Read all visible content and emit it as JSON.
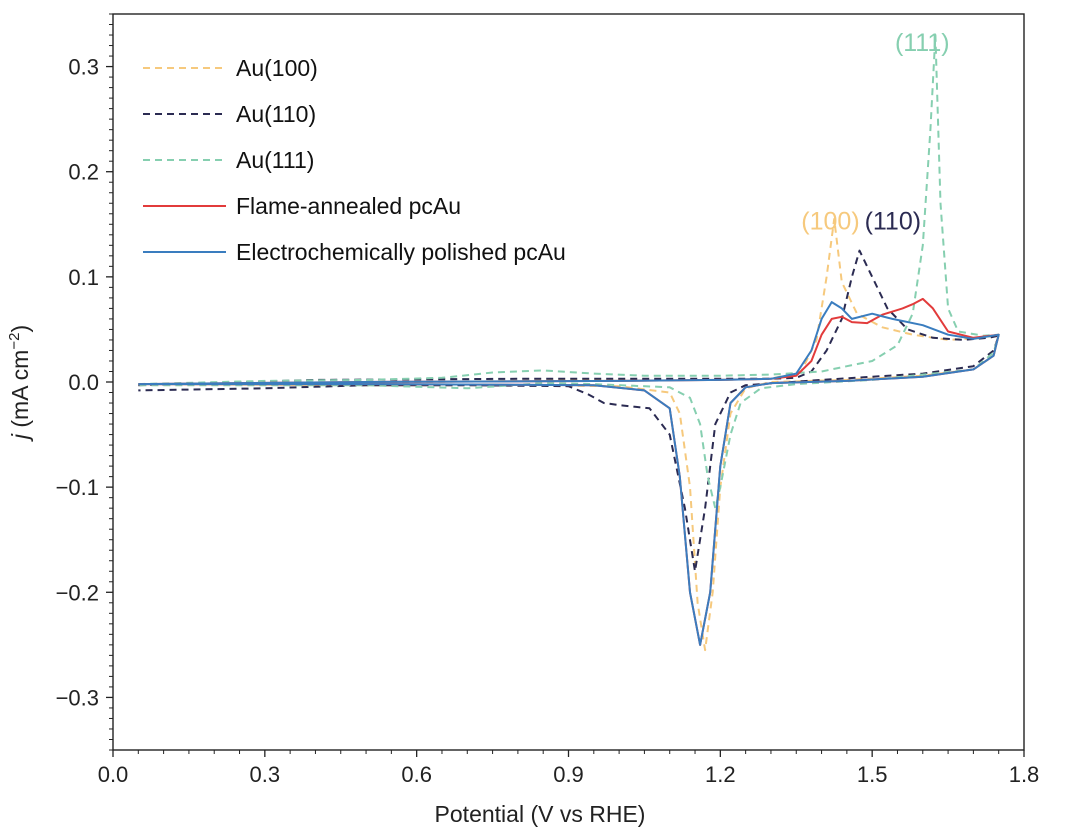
{
  "chart_data": {
    "type": "line",
    "xlabel": "Potential (V vs RHE)",
    "ylabel_italic": "j",
    "ylabel_rest": " (mA cm",
    "ylabel_sup": "−2",
    "ylabel_close": ")",
    "xlim": [
      0.0,
      1.8
    ],
    "ylim": [
      -0.35,
      0.35
    ],
    "xticks": [
      0.0,
      0.3,
      0.6,
      0.9,
      1.2,
      1.5,
      1.8
    ],
    "xtick_labels": [
      "0.0",
      "0.3",
      "0.6",
      "0.9",
      "1.2",
      "1.5",
      "1.8"
    ],
    "yticks": [
      -0.3,
      -0.2,
      -0.1,
      0.0,
      0.1,
      0.2,
      0.3
    ],
    "ytick_labels": [
      "−0.3",
      "−0.2",
      "−0.1",
      "0.0",
      "0.1",
      "0.2",
      "0.3"
    ],
    "grid": false,
    "legend_position": "top-left",
    "series": [
      {
        "name": "Au(100)",
        "color": "#f6c97d",
        "dashed": true,
        "points": [
          [
            0.05,
            -0.002
          ],
          [
            0.4,
            -0.001
          ],
          [
            0.8,
            0.001
          ],
          [
            1.0,
            0.002
          ],
          [
            1.2,
            0.002
          ],
          [
            1.3,
            0.003
          ],
          [
            1.36,
            0.01
          ],
          [
            1.39,
            0.04
          ],
          [
            1.41,
            0.1
          ],
          [
            1.425,
            0.155
          ],
          [
            1.44,
            0.095
          ],
          [
            1.47,
            0.065
          ],
          [
            1.52,
            0.052
          ],
          [
            1.58,
            0.045
          ],
          [
            1.65,
            0.04
          ],
          [
            1.72,
            0.042
          ],
          [
            1.75,
            0.045
          ],
          [
            1.74,
            0.025
          ],
          [
            1.7,
            0.012
          ],
          [
            1.6,
            0.006
          ],
          [
            1.45,
            0.002
          ],
          [
            1.3,
            0.0
          ],
          [
            1.25,
            -0.006
          ],
          [
            1.22,
            -0.03
          ],
          [
            1.2,
            -0.1
          ],
          [
            1.185,
            -0.2
          ],
          [
            1.17,
            -0.255
          ],
          [
            1.155,
            -0.21
          ],
          [
            1.14,
            -0.1
          ],
          [
            1.12,
            -0.03
          ],
          [
            1.1,
            -0.01
          ],
          [
            1.0,
            -0.004
          ],
          [
            0.8,
            -0.003
          ],
          [
            0.5,
            -0.003
          ],
          [
            0.05,
            -0.002
          ]
        ]
      },
      {
        "name": "Au(110)",
        "color": "#2b2b52",
        "dashed": true,
        "points": [
          [
            0.05,
            -0.003
          ],
          [
            0.4,
            0.002
          ],
          [
            0.8,
            0.003
          ],
          [
            1.2,
            0.003
          ],
          [
            1.3,
            0.003
          ],
          [
            1.35,
            0.004
          ],
          [
            1.38,
            0.01
          ],
          [
            1.41,
            0.03
          ],
          [
            1.44,
            0.06
          ],
          [
            1.46,
            0.1
          ],
          [
            1.475,
            0.125
          ],
          [
            1.5,
            0.1
          ],
          [
            1.53,
            0.07
          ],
          [
            1.57,
            0.05
          ],
          [
            1.62,
            0.042
          ],
          [
            1.68,
            0.04
          ],
          [
            1.73,
            0.042
          ],
          [
            1.75,
            0.044
          ],
          [
            1.74,
            0.03
          ],
          [
            1.7,
            0.015
          ],
          [
            1.6,
            0.008
          ],
          [
            1.4,
            0.002
          ],
          [
            1.25,
            -0.003
          ],
          [
            1.22,
            -0.01
          ],
          [
            1.19,
            -0.04
          ],
          [
            1.17,
            -0.12
          ],
          [
            1.15,
            -0.18
          ],
          [
            1.13,
            -0.12
          ],
          [
            1.1,
            -0.05
          ],
          [
            1.06,
            -0.025
          ],
          [
            1.0,
            -0.022
          ],
          [
            0.97,
            -0.02
          ],
          [
            0.94,
            -0.012
          ],
          [
            0.9,
            -0.004
          ],
          [
            0.7,
            -0.003
          ],
          [
            0.5,
            -0.003
          ],
          [
            0.3,
            -0.006
          ],
          [
            0.05,
            -0.008
          ]
        ]
      },
      {
        "name": "Au(111)",
        "color": "#86cfb0",
        "dashed": true,
        "points": [
          [
            0.05,
            -0.002
          ],
          [
            0.3,
            0.001
          ],
          [
            0.5,
            0.002
          ],
          [
            0.65,
            0.004
          ],
          [
            0.75,
            0.009
          ],
          [
            0.85,
            0.011
          ],
          [
            0.95,
            0.008
          ],
          [
            1.05,
            0.006
          ],
          [
            1.2,
            0.006
          ],
          [
            1.3,
            0.007
          ],
          [
            1.4,
            0.01
          ],
          [
            1.45,
            0.015
          ],
          [
            1.5,
            0.02
          ],
          [
            1.55,
            0.035
          ],
          [
            1.58,
            0.065
          ],
          [
            1.6,
            0.13
          ],
          [
            1.615,
            0.24
          ],
          [
            1.625,
            0.33
          ],
          [
            1.635,
            0.17
          ],
          [
            1.65,
            0.07
          ],
          [
            1.67,
            0.048
          ],
          [
            1.72,
            0.044
          ],
          [
            1.75,
            0.045
          ],
          [
            1.74,
            0.028
          ],
          [
            1.7,
            0.012
          ],
          [
            1.6,
            0.007
          ],
          [
            1.5,
            0.002
          ],
          [
            1.35,
            -0.002
          ],
          [
            1.28,
            -0.006
          ],
          [
            1.24,
            -0.02
          ],
          [
            1.22,
            -0.05
          ],
          [
            1.2,
            -0.1
          ],
          [
            1.19,
            -0.12
          ],
          [
            1.175,
            -0.09
          ],
          [
            1.16,
            -0.04
          ],
          [
            1.14,
            -0.015
          ],
          [
            1.1,
            -0.005
          ],
          [
            0.95,
            -0.002
          ],
          [
            0.85,
            -0.001
          ],
          [
            0.7,
            -0.006
          ],
          [
            0.5,
            -0.003
          ],
          [
            0.05,
            -0.003
          ]
        ]
      },
      {
        "name": "Flame-annealed pcAu",
        "color": "#e23b3b",
        "dashed": false,
        "points": [
          [
            0.05,
            -0.002
          ],
          [
            0.5,
            0.0
          ],
          [
            1.0,
            0.001
          ],
          [
            1.2,
            0.002
          ],
          [
            1.3,
            0.003
          ],
          [
            1.35,
            0.006
          ],
          [
            1.38,
            0.02
          ],
          [
            1.4,
            0.045
          ],
          [
            1.42,
            0.06
          ],
          [
            1.44,
            0.062
          ],
          [
            1.46,
            0.057
          ],
          [
            1.49,
            0.056
          ],
          [
            1.52,
            0.064
          ],
          [
            1.56,
            0.07
          ],
          [
            1.58,
            0.074
          ],
          [
            1.6,
            0.079
          ],
          [
            1.62,
            0.07
          ],
          [
            1.65,
            0.048
          ],
          [
            1.7,
            0.042
          ],
          [
            1.75,
            0.045
          ],
          [
            1.74,
            0.025
          ],
          [
            1.7,
            0.012
          ],
          [
            1.6,
            0.005
          ],
          [
            1.45,
            0.001
          ],
          [
            1.3,
            -0.001
          ],
          [
            1.25,
            -0.005
          ],
          [
            1.22,
            -0.02
          ],
          [
            1.2,
            -0.08
          ],
          [
            1.18,
            -0.2
          ],
          [
            1.16,
            -0.25
          ],
          [
            1.14,
            -0.2
          ],
          [
            1.12,
            -0.09
          ],
          [
            1.1,
            -0.025
          ],
          [
            1.05,
            -0.008
          ],
          [
            0.95,
            -0.003
          ],
          [
            0.5,
            -0.002
          ],
          [
            0.05,
            -0.002
          ]
        ]
      },
      {
        "name": "Electrochemically polished pcAu",
        "color": "#3a7dbf",
        "dashed": false,
        "points": [
          [
            0.05,
            -0.002
          ],
          [
            0.5,
            0.0
          ],
          [
            1.0,
            0.001
          ],
          [
            1.2,
            0.002
          ],
          [
            1.3,
            0.003
          ],
          [
            1.35,
            0.008
          ],
          [
            1.38,
            0.03
          ],
          [
            1.4,
            0.06
          ],
          [
            1.42,
            0.076
          ],
          [
            1.44,
            0.07
          ],
          [
            1.46,
            0.06
          ],
          [
            1.5,
            0.065
          ],
          [
            1.54,
            0.06
          ],
          [
            1.6,
            0.054
          ],
          [
            1.65,
            0.045
          ],
          [
            1.7,
            0.041
          ],
          [
            1.75,
            0.045
          ],
          [
            1.74,
            0.025
          ],
          [
            1.7,
            0.012
          ],
          [
            1.6,
            0.005
          ],
          [
            1.45,
            0.001
          ],
          [
            1.3,
            -0.001
          ],
          [
            1.25,
            -0.005
          ],
          [
            1.22,
            -0.02
          ],
          [
            1.2,
            -0.08
          ],
          [
            1.18,
            -0.2
          ],
          [
            1.16,
            -0.25
          ],
          [
            1.14,
            -0.2
          ],
          [
            1.12,
            -0.09
          ],
          [
            1.1,
            -0.025
          ],
          [
            1.05,
            -0.008
          ],
          [
            0.95,
            -0.003
          ],
          [
            0.5,
            -0.002
          ],
          [
            0.05,
            -0.002
          ]
        ]
      }
    ],
    "annotations": [
      {
        "text": "(100)",
        "x": 1.36,
        "y": 0.145,
        "color": "#f6c97d"
      },
      {
        "text": "(110)",
        "x": 1.485,
        "y": 0.145,
        "color": "#2b2b52"
      },
      {
        "text": "(111)",
        "x": 1.545,
        "y": 0.315,
        "color": "#86cfb0"
      }
    ]
  }
}
